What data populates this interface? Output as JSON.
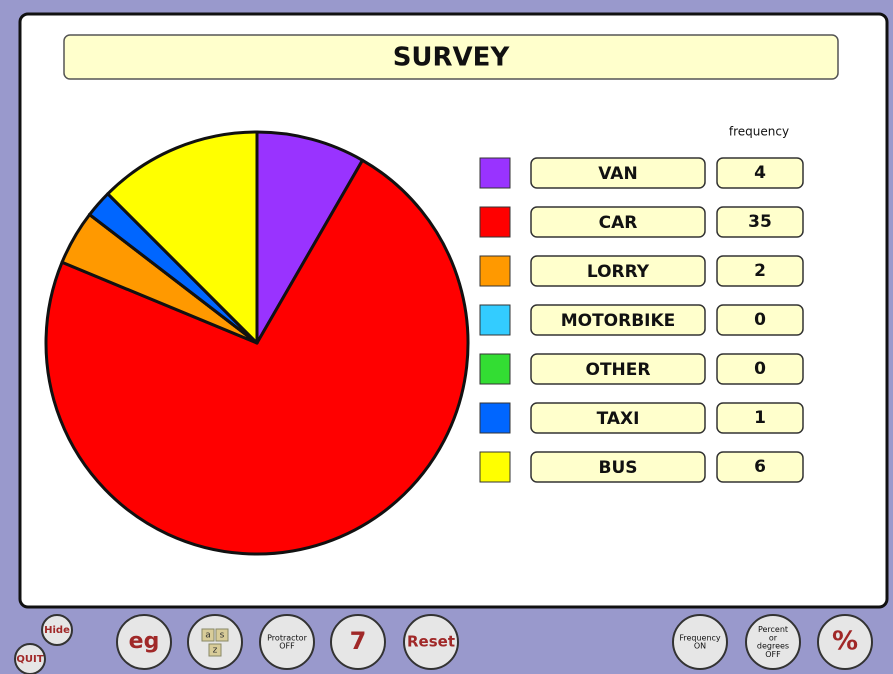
{
  "chart_data": {
    "type": "pie",
    "title": "SURVEY",
    "value_header": "frequency",
    "categories": [
      "VAN",
      "CAR",
      "LORRY",
      "MOTORBIKE",
      "OTHER",
      "TAXI",
      "BUS"
    ],
    "values": [
      4,
      35,
      2,
      0,
      0,
      1,
      6
    ],
    "colors": [
      "#9933ff",
      "#ff0000",
      "#ff9900",
      "#33ccff",
      "#33dd33",
      "#0066ff",
      "#ffff00"
    ]
  },
  "toolbar": {
    "buttons": [
      {
        "lines": [
          "Hide"
        ]
      },
      {
        "lines": [
          "QUIT"
        ]
      },
      {
        "lines": [
          "eg"
        ]
      },
      {
        "lines": [
          "a",
          "s",
          "z"
        ]
      },
      {
        "lines": [
          "Protractor",
          "OFF"
        ]
      },
      {
        "lines": [
          "7"
        ]
      },
      {
        "lines": [
          "Reset"
        ]
      },
      {
        "lines": [
          "Frequency",
          "ON"
        ]
      },
      {
        "lines": [
          "Percent",
          "or",
          "degrees",
          "OFF"
        ]
      },
      {
        "lines": [
          "%"
        ]
      }
    ]
  }
}
